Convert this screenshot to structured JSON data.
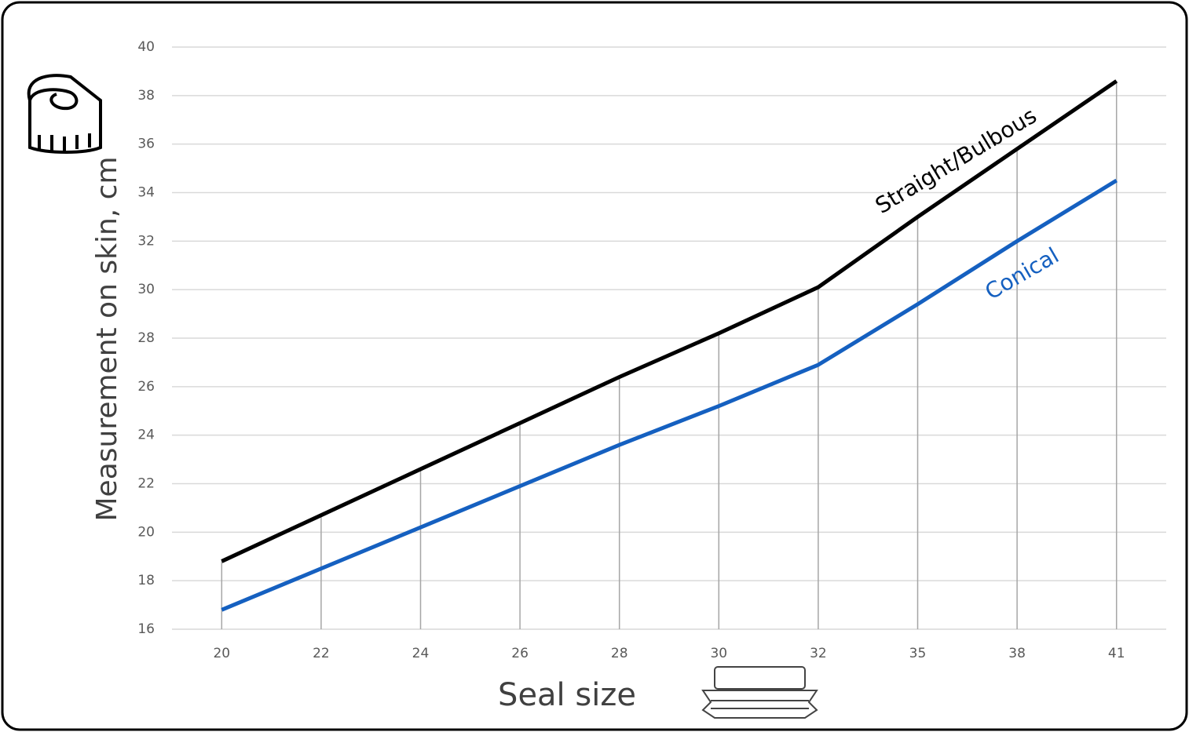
{
  "chart_data": {
    "type": "line",
    "x_label": "Seal size",
    "y_label": "Measurement on skin, cm",
    "categories": [
      "20",
      "22",
      "24",
      "26",
      "28",
      "30",
      "32",
      "35",
      "38",
      "41"
    ],
    "series": [
      {
        "name": "Straight/Bulbous",
        "color": "#000000",
        "values": [
          18.8,
          20.7,
          22.6,
          24.5,
          26.4,
          28.2,
          30.1,
          33.0,
          35.8,
          38.6
        ]
      },
      {
        "name": "Conical",
        "color": "#1560c0",
        "values": [
          16.8,
          18.5,
          20.2,
          21.9,
          23.6,
          25.2,
          26.9,
          29.4,
          32.0,
          34.5
        ]
      }
    ],
    "ylim": [
      16,
      40
    ],
    "yticks": [
      16,
      18,
      20,
      22,
      24,
      26,
      28,
      30,
      32,
      34,
      36,
      38,
      40
    ],
    "grid": true
  }
}
